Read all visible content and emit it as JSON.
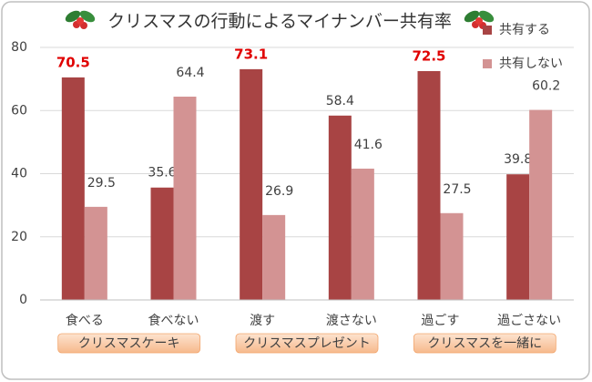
{
  "chart_data": {
    "type": "bar",
    "title": "クリスマスの行動によるマイナンバー共有率",
    "categories": [
      "食べる",
      "食べない",
      "渡す",
      "渡さない",
      "過ごす",
      "過ごさない"
    ],
    "groups": [
      "クリスマスケーキ",
      "クリスマスプレゼント",
      "クリスマスを一緒に"
    ],
    "series": [
      {
        "name": "共有する",
        "color": "#a84444",
        "values": [
          70.5,
          35.6,
          73.1,
          58.4,
          72.5,
          39.8
        ],
        "value_label_colors": [
          "#e00000",
          "#404040",
          "#e00000",
          "#404040",
          "#e00000",
          "#404040"
        ]
      },
      {
        "name": "共有しない",
        "color": "#d39393",
        "values": [
          29.5,
          64.4,
          26.9,
          41.6,
          27.5,
          60.2
        ],
        "value_label_colors": [
          "#404040",
          "#404040",
          "#404040",
          "#404040",
          "#404040",
          "#404040"
        ]
      }
    ],
    "ylim": [
      0,
      80
    ],
    "yticks": [
      0,
      20,
      40,
      60,
      80
    ],
    "grid": true,
    "legend": "top-right"
  }
}
